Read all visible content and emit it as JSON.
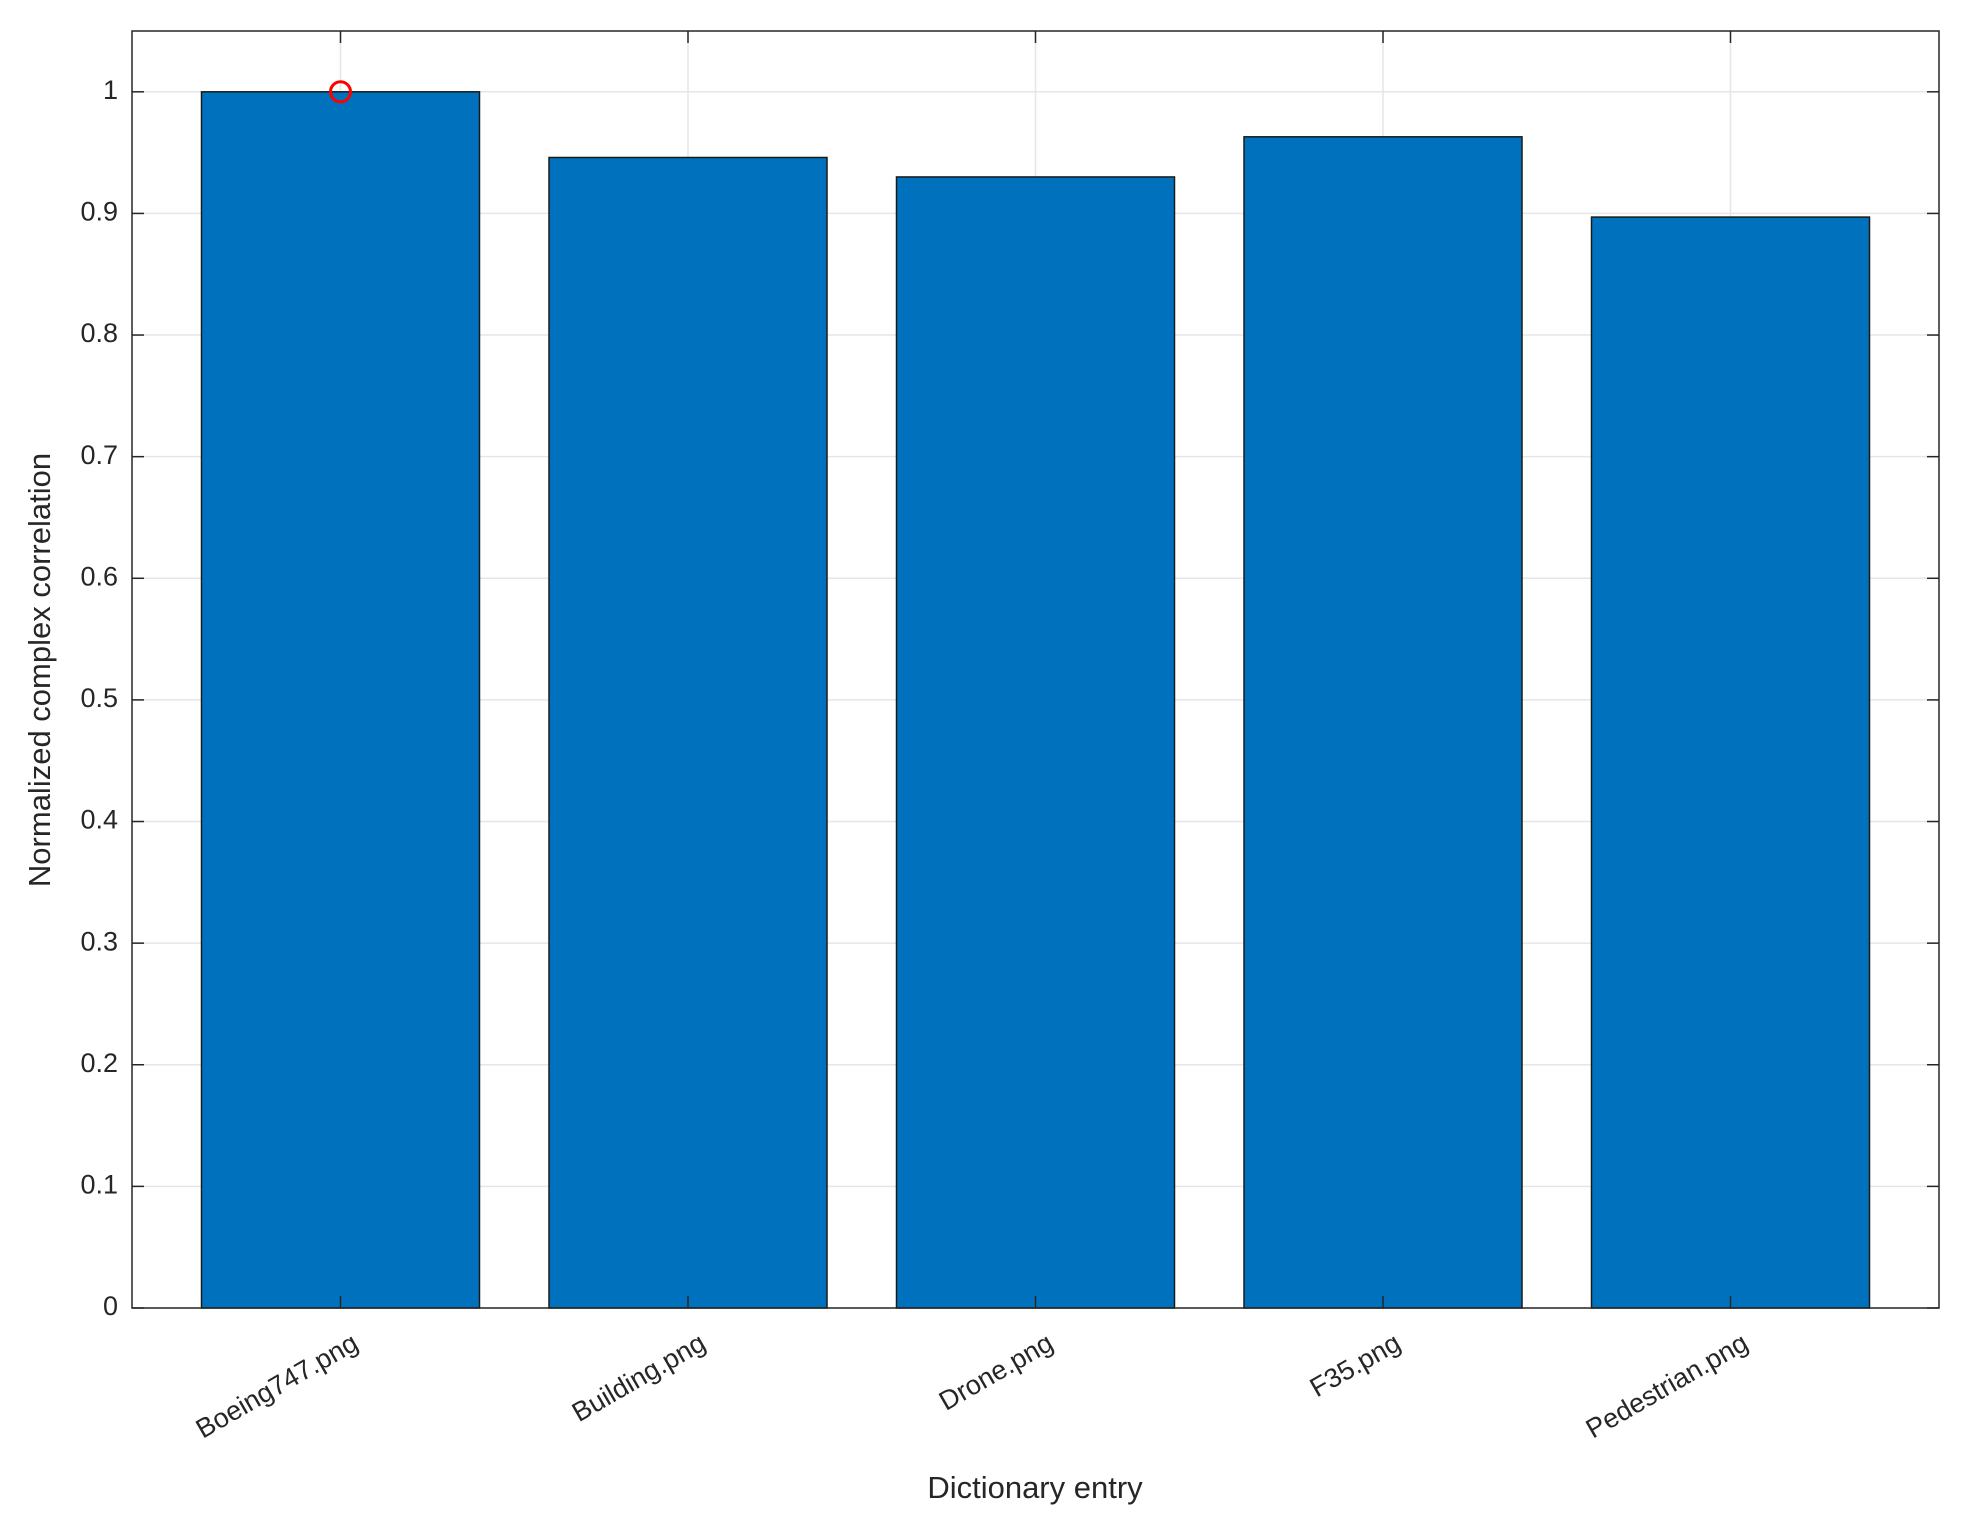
{
  "chart_data": {
    "type": "bar",
    "xlabel": "Dictionary entry",
    "ylabel": "Normalized complex correlation",
    "categories": [
      "Boeing747.png",
      "Building.png",
      "Drone.png",
      "F35.png",
      "Pedestrian.png"
    ],
    "values": [
      1.0,
      0.946,
      0.93,
      0.963,
      0.897
    ],
    "color": "#0072bd",
    "ylim": [
      0,
      1.05
    ],
    "yticks": [
      0,
      0.1,
      0.2,
      0.3,
      0.4,
      0.5,
      0.6,
      0.7,
      0.8,
      0.9,
      1
    ],
    "grid": true,
    "highlight": {
      "index": 0,
      "color": "#ff0000"
    }
  }
}
